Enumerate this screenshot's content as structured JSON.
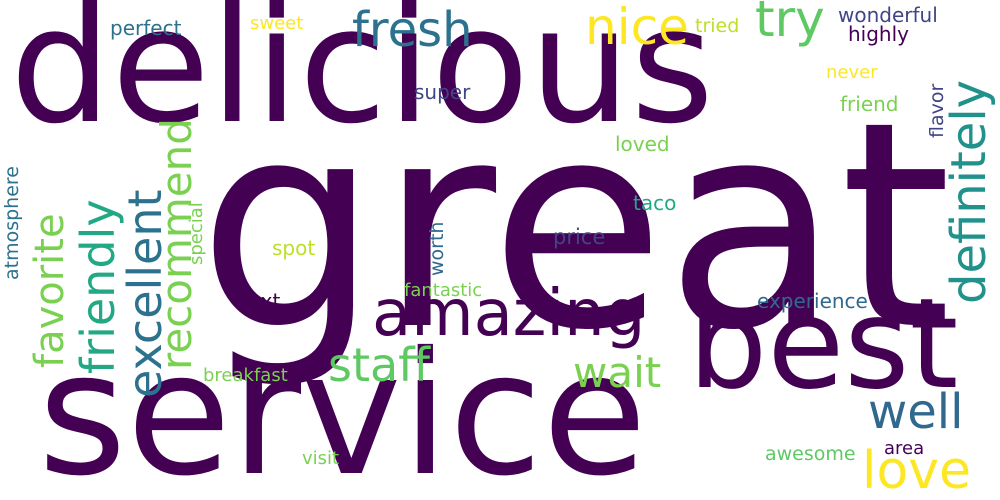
{
  "colors": {
    "background": "#ffffff",
    "dark_purple": "#440154",
    "indigo": "#3b528b",
    "teal": "#21918c",
    "green": "#5ec962",
    "yellow": "#fde725"
  },
  "words": {
    "great": "great",
    "delicious": "delicious",
    "service": "service",
    "best": "best",
    "amazing": "amazing",
    "fresh": "fresh",
    "nice": "nice",
    "try": "try",
    "definitely": "definitely",
    "well": "well",
    "love": "love",
    "staff": "staff",
    "wait": "wait",
    "favorite": "favorite",
    "friendly": "friendly",
    "excellent": "excellent",
    "recommend": "recommend",
    "wonderful": "wonderful",
    "highly": "highly",
    "perfect": "perfect",
    "sweet": "sweet",
    "tried": "tried",
    "never": "never",
    "friend": "friend",
    "flavor": "flavor",
    "super": "super",
    "loved": "loved",
    "taco": "taco",
    "price": "price",
    "spot": "spot",
    "atmosphere": "atmosphere",
    "special": "special",
    "worth": "worth",
    "fantastic": "fantastic",
    "next": "next",
    "experience": "experience",
    "breakfast": "breakfast",
    "awesome": "awesome",
    "area": "area",
    "visit": "visit"
  }
}
